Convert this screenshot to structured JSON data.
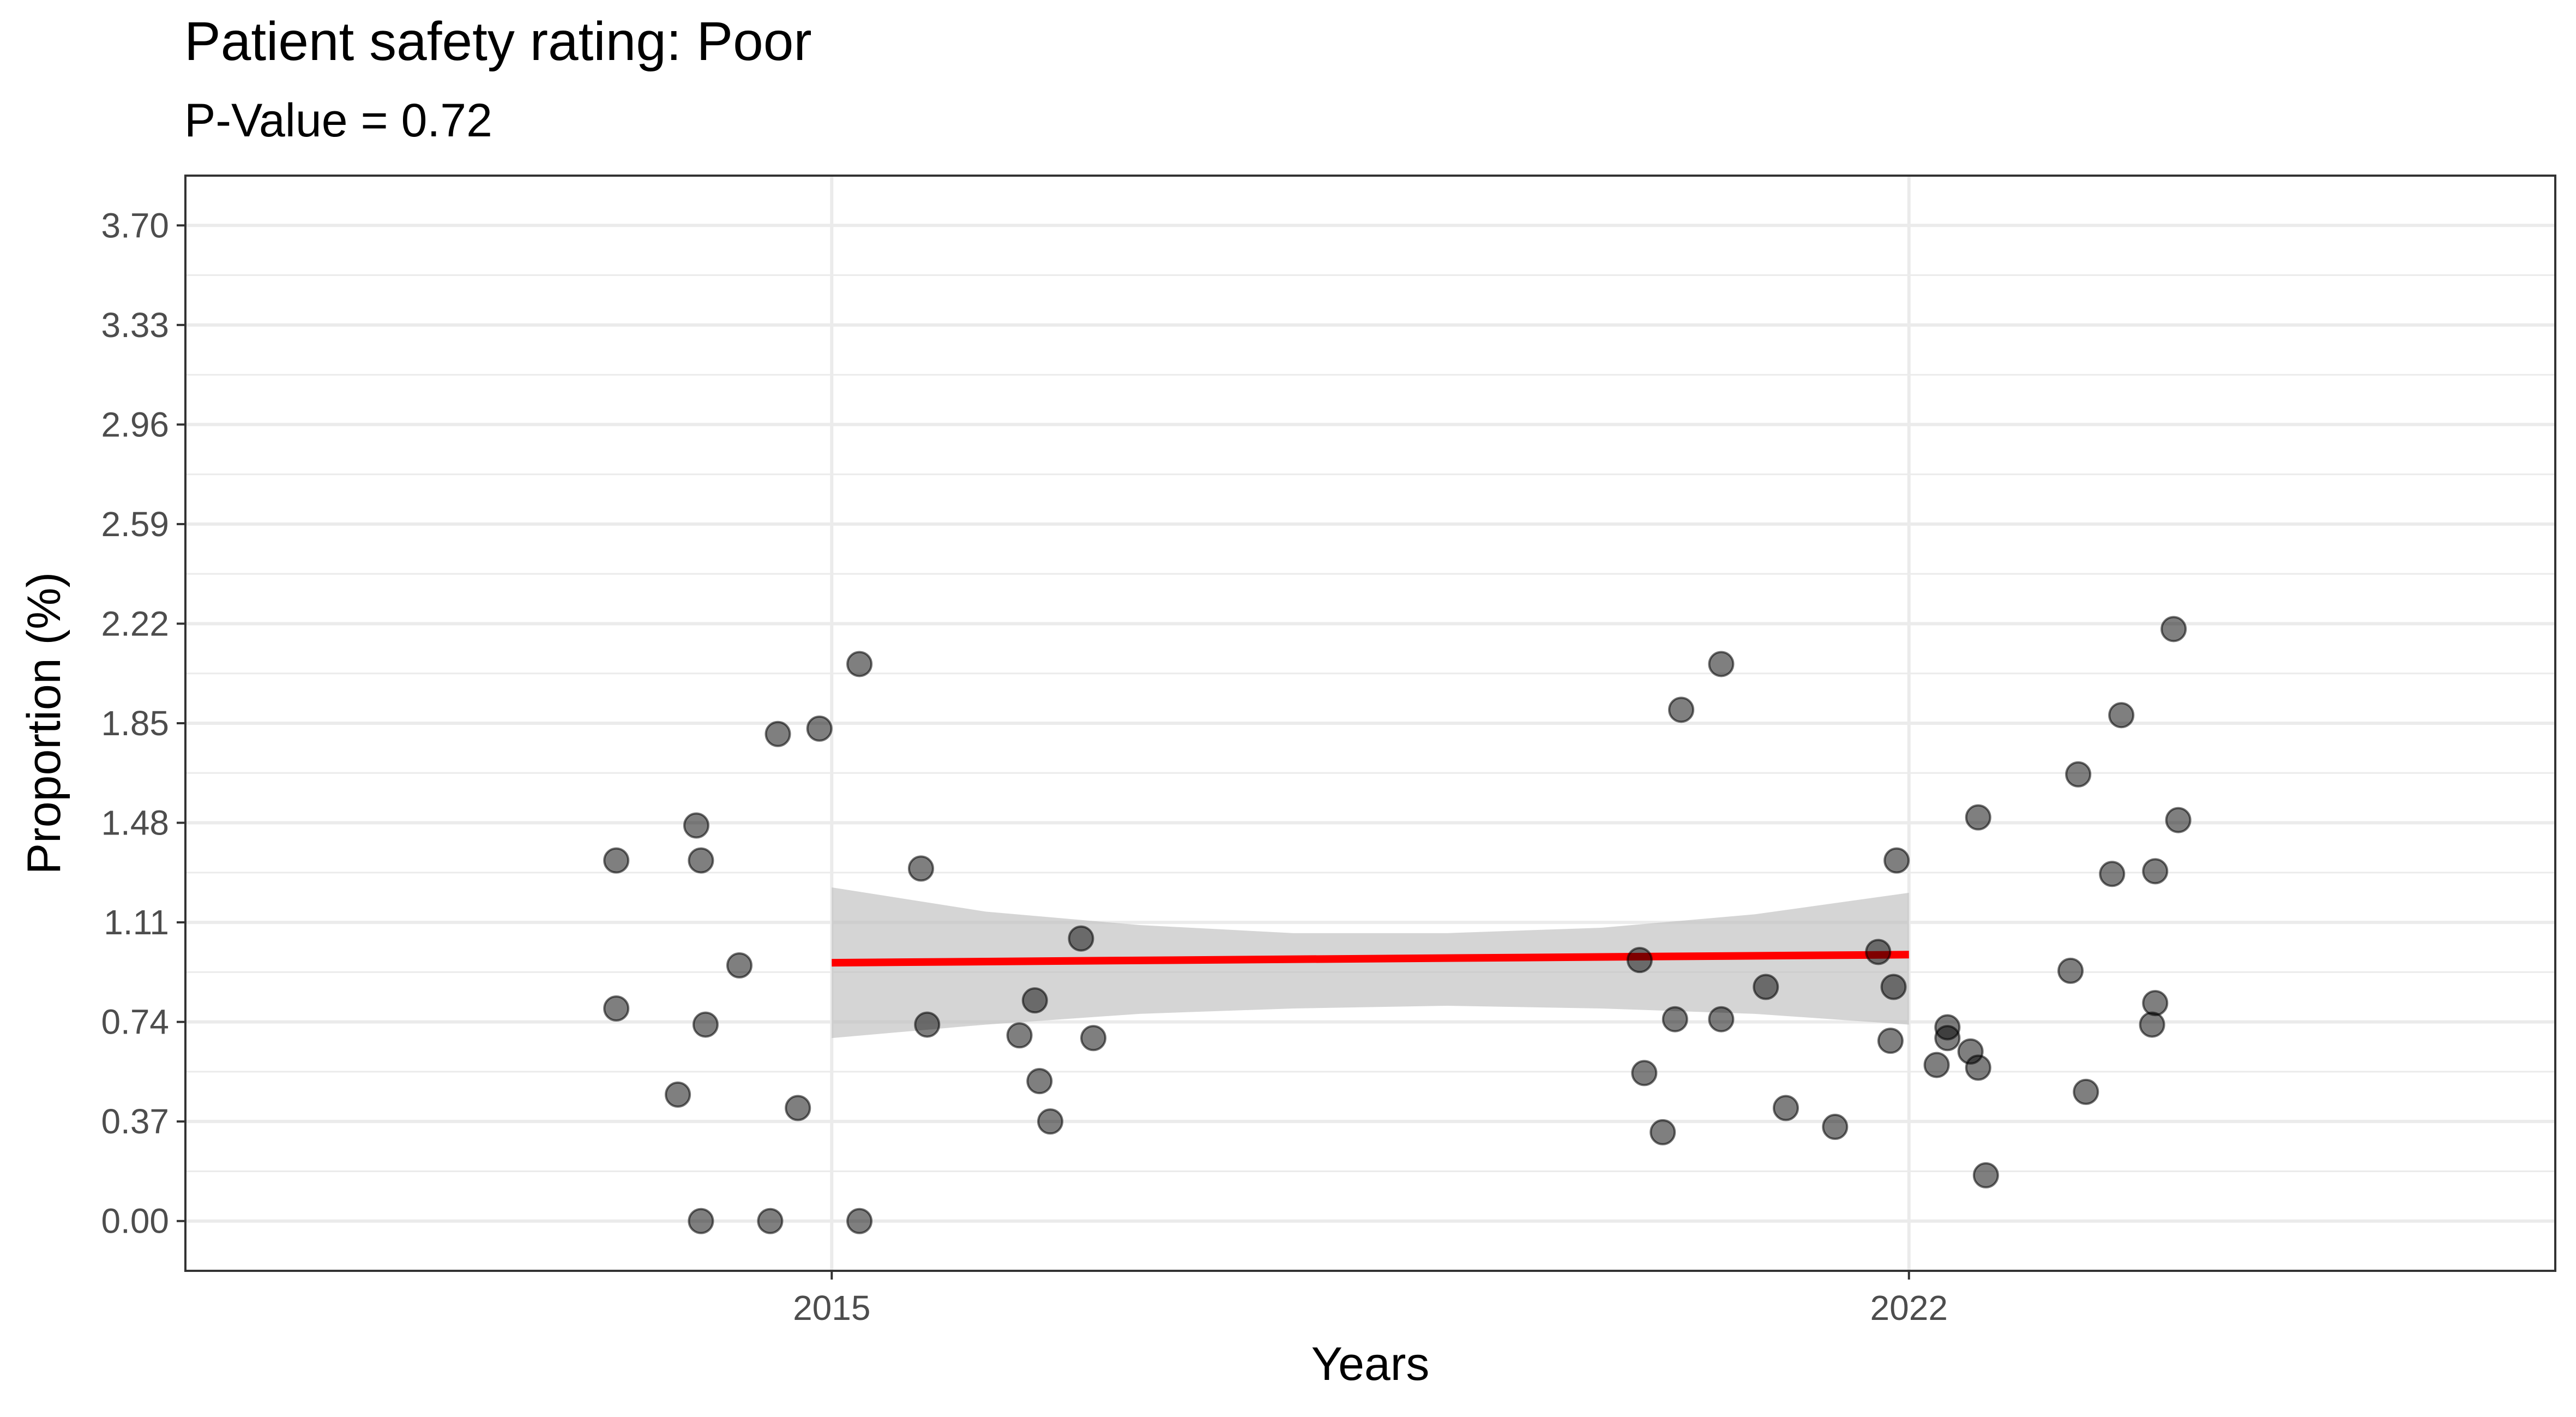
{
  "chart_data": {
    "type": "scatter",
    "title": "Patient safety rating: Poor",
    "subtitle": "P-Value = 0.72",
    "xlabel": "Years",
    "ylabel": "Proportion (%)",
    "x_ticks": [
      {
        "value": 2015,
        "label": "2015"
      },
      {
        "value": 2022,
        "label": "2022"
      }
    ],
    "y_ticks": [
      {
        "value": 0.0,
        "label": "0.00"
      },
      {
        "value": 0.37,
        "label": "0.37"
      },
      {
        "value": 0.74,
        "label": "0.74"
      },
      {
        "value": 1.11,
        "label": "1.11"
      },
      {
        "value": 1.48,
        "label": "1.48"
      },
      {
        "value": 1.85,
        "label": "1.85"
      },
      {
        "value": 2.22,
        "label": "2.22"
      },
      {
        "value": 2.59,
        "label": "2.59"
      },
      {
        "value": 2.96,
        "label": "2.96"
      },
      {
        "value": 3.33,
        "label": "3.33"
      },
      {
        "value": 3.7,
        "label": "3.70"
      }
    ],
    "xlim": [
      2010.8,
      2026.2
    ],
    "ylim": [
      -0.185,
      3.885
    ],
    "grid": true,
    "points": [
      {
        "x": 2013.6,
        "y": 1.34
      },
      {
        "x": 2013.6,
        "y": 0.79
      },
      {
        "x": 2014.0,
        "y": 0.47
      },
      {
        "x": 2014.12,
        "y": 1.47
      },
      {
        "x": 2014.15,
        "y": 1.34
      },
      {
        "x": 2014.15,
        "y": 0.0
      },
      {
        "x": 2014.18,
        "y": 0.73
      },
      {
        "x": 2014.4,
        "y": 0.95
      },
      {
        "x": 2014.6,
        "y": 0.0
      },
      {
        "x": 2014.65,
        "y": 1.81
      },
      {
        "x": 2014.78,
        "y": 0.42
      },
      {
        "x": 2014.92,
        "y": 1.83
      },
      {
        "x": 2015.18,
        "y": 2.07
      },
      {
        "x": 2015.18,
        "y": 0.0
      },
      {
        "x": 2015.58,
        "y": 1.31
      },
      {
        "x": 2015.62,
        "y": 0.73
      },
      {
        "x": 2016.22,
        "y": 0.69
      },
      {
        "x": 2016.32,
        "y": 0.82
      },
      {
        "x": 2016.35,
        "y": 0.52
      },
      {
        "x": 2016.42,
        "y": 0.37
      },
      {
        "x": 2016.62,
        "y": 1.05
      },
      {
        "x": 2016.7,
        "y": 0.68
      },
      {
        "x": 2020.25,
        "y": 0.97
      },
      {
        "x": 2020.28,
        "y": 0.55
      },
      {
        "x": 2020.4,
        "y": 0.33
      },
      {
        "x": 2020.48,
        "y": 0.75
      },
      {
        "x": 2020.52,
        "y": 1.9
      },
      {
        "x": 2020.78,
        "y": 2.07
      },
      {
        "x": 2020.78,
        "y": 0.75
      },
      {
        "x": 2021.07,
        "y": 0.87
      },
      {
        "x": 2021.2,
        "y": 0.42
      },
      {
        "x": 2021.52,
        "y": 0.35
      },
      {
        "x": 2021.8,
        "y": 1.0
      },
      {
        "x": 2021.88,
        "y": 0.67
      },
      {
        "x": 2021.9,
        "y": 0.87
      },
      {
        "x": 2021.92,
        "y": 1.34
      },
      {
        "x": 2022.18,
        "y": 0.58
      },
      {
        "x": 2022.25,
        "y": 0.68
      },
      {
        "x": 2022.25,
        "y": 0.72
      },
      {
        "x": 2022.4,
        "y": 0.63
      },
      {
        "x": 2022.45,
        "y": 0.57
      },
      {
        "x": 2022.45,
        "y": 1.5
      },
      {
        "x": 2022.5,
        "y": 0.17
      },
      {
        "x": 2023.05,
        "y": 0.93
      },
      {
        "x": 2023.1,
        "y": 1.66
      },
      {
        "x": 2023.15,
        "y": 0.48
      },
      {
        "x": 2023.32,
        "y": 1.29
      },
      {
        "x": 2023.38,
        "y": 1.88
      },
      {
        "x": 2023.58,
        "y": 0.73
      },
      {
        "x": 2023.6,
        "y": 0.81
      },
      {
        "x": 2023.6,
        "y": 1.3
      },
      {
        "x": 2023.72,
        "y": 2.2
      },
      {
        "x": 2023.75,
        "y": 1.49
      }
    ],
    "trend": {
      "x": [
        2015,
        2022
      ],
      "y": [
        0.96,
        0.99
      ],
      "color": "#ff0000",
      "ci_x": [
        2015,
        2016,
        2017,
        2018,
        2019,
        2020,
        2021,
        2022
      ],
      "ci_lower": [
        0.68,
        0.73,
        0.77,
        0.79,
        0.8,
        0.79,
        0.77,
        0.73
      ],
      "ci_upper": [
        1.24,
        1.15,
        1.1,
        1.07,
        1.07,
        1.09,
        1.14,
        1.22
      ]
    },
    "colors": {
      "point_fill": "#000000",
      "point_fill_opacity": 0.5,
      "ci_band": "#bebebe",
      "grid": "#ebebeb",
      "panel_border": "#333333"
    }
  }
}
